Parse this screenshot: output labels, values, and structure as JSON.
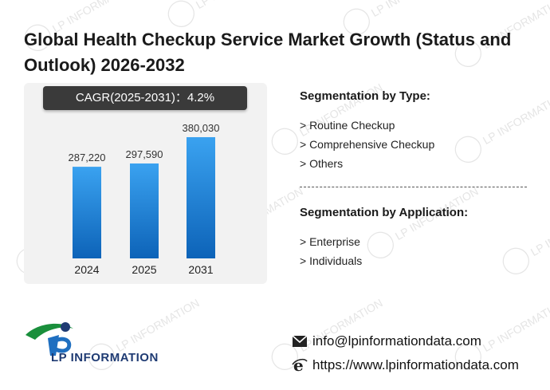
{
  "title": "Global Health Checkup Service Market Growth (Status and Outlook) 2026-2032",
  "cagr": {
    "label": "CAGR(2025-2031)：",
    "value": "4.2%"
  },
  "chart_data": {
    "type": "bar",
    "categories": [
      "2024",
      "2025",
      "2031"
    ],
    "values": [
      287220,
      297590,
      380030
    ],
    "value_labels": [
      "287,220",
      "297,590",
      "380,030"
    ],
    "title": "",
    "xlabel": "",
    "ylabel": "",
    "ylim": [
      0,
      500000
    ],
    "grid": false,
    "bar_color": "#1a7fd6"
  },
  "segmentation_type": {
    "title": "Segmentation by Type:",
    "items": [
      "> Routine Checkup",
      "> Comprehensive Checkup",
      "> Others"
    ]
  },
  "segmentation_application": {
    "title": "Segmentation by Application:",
    "items": [
      "> Enterprise",
      "> Individuals"
    ]
  },
  "logo": {
    "text": "LP INFORMATION"
  },
  "watermark": {
    "text": "LP INFORMATION"
  },
  "contact": {
    "email": "info@lpinformationdata.com",
    "website": "https://www.lpinformationdata.com"
  },
  "icons": {
    "email": "envelope-icon",
    "website": "ie-browser-icon"
  }
}
